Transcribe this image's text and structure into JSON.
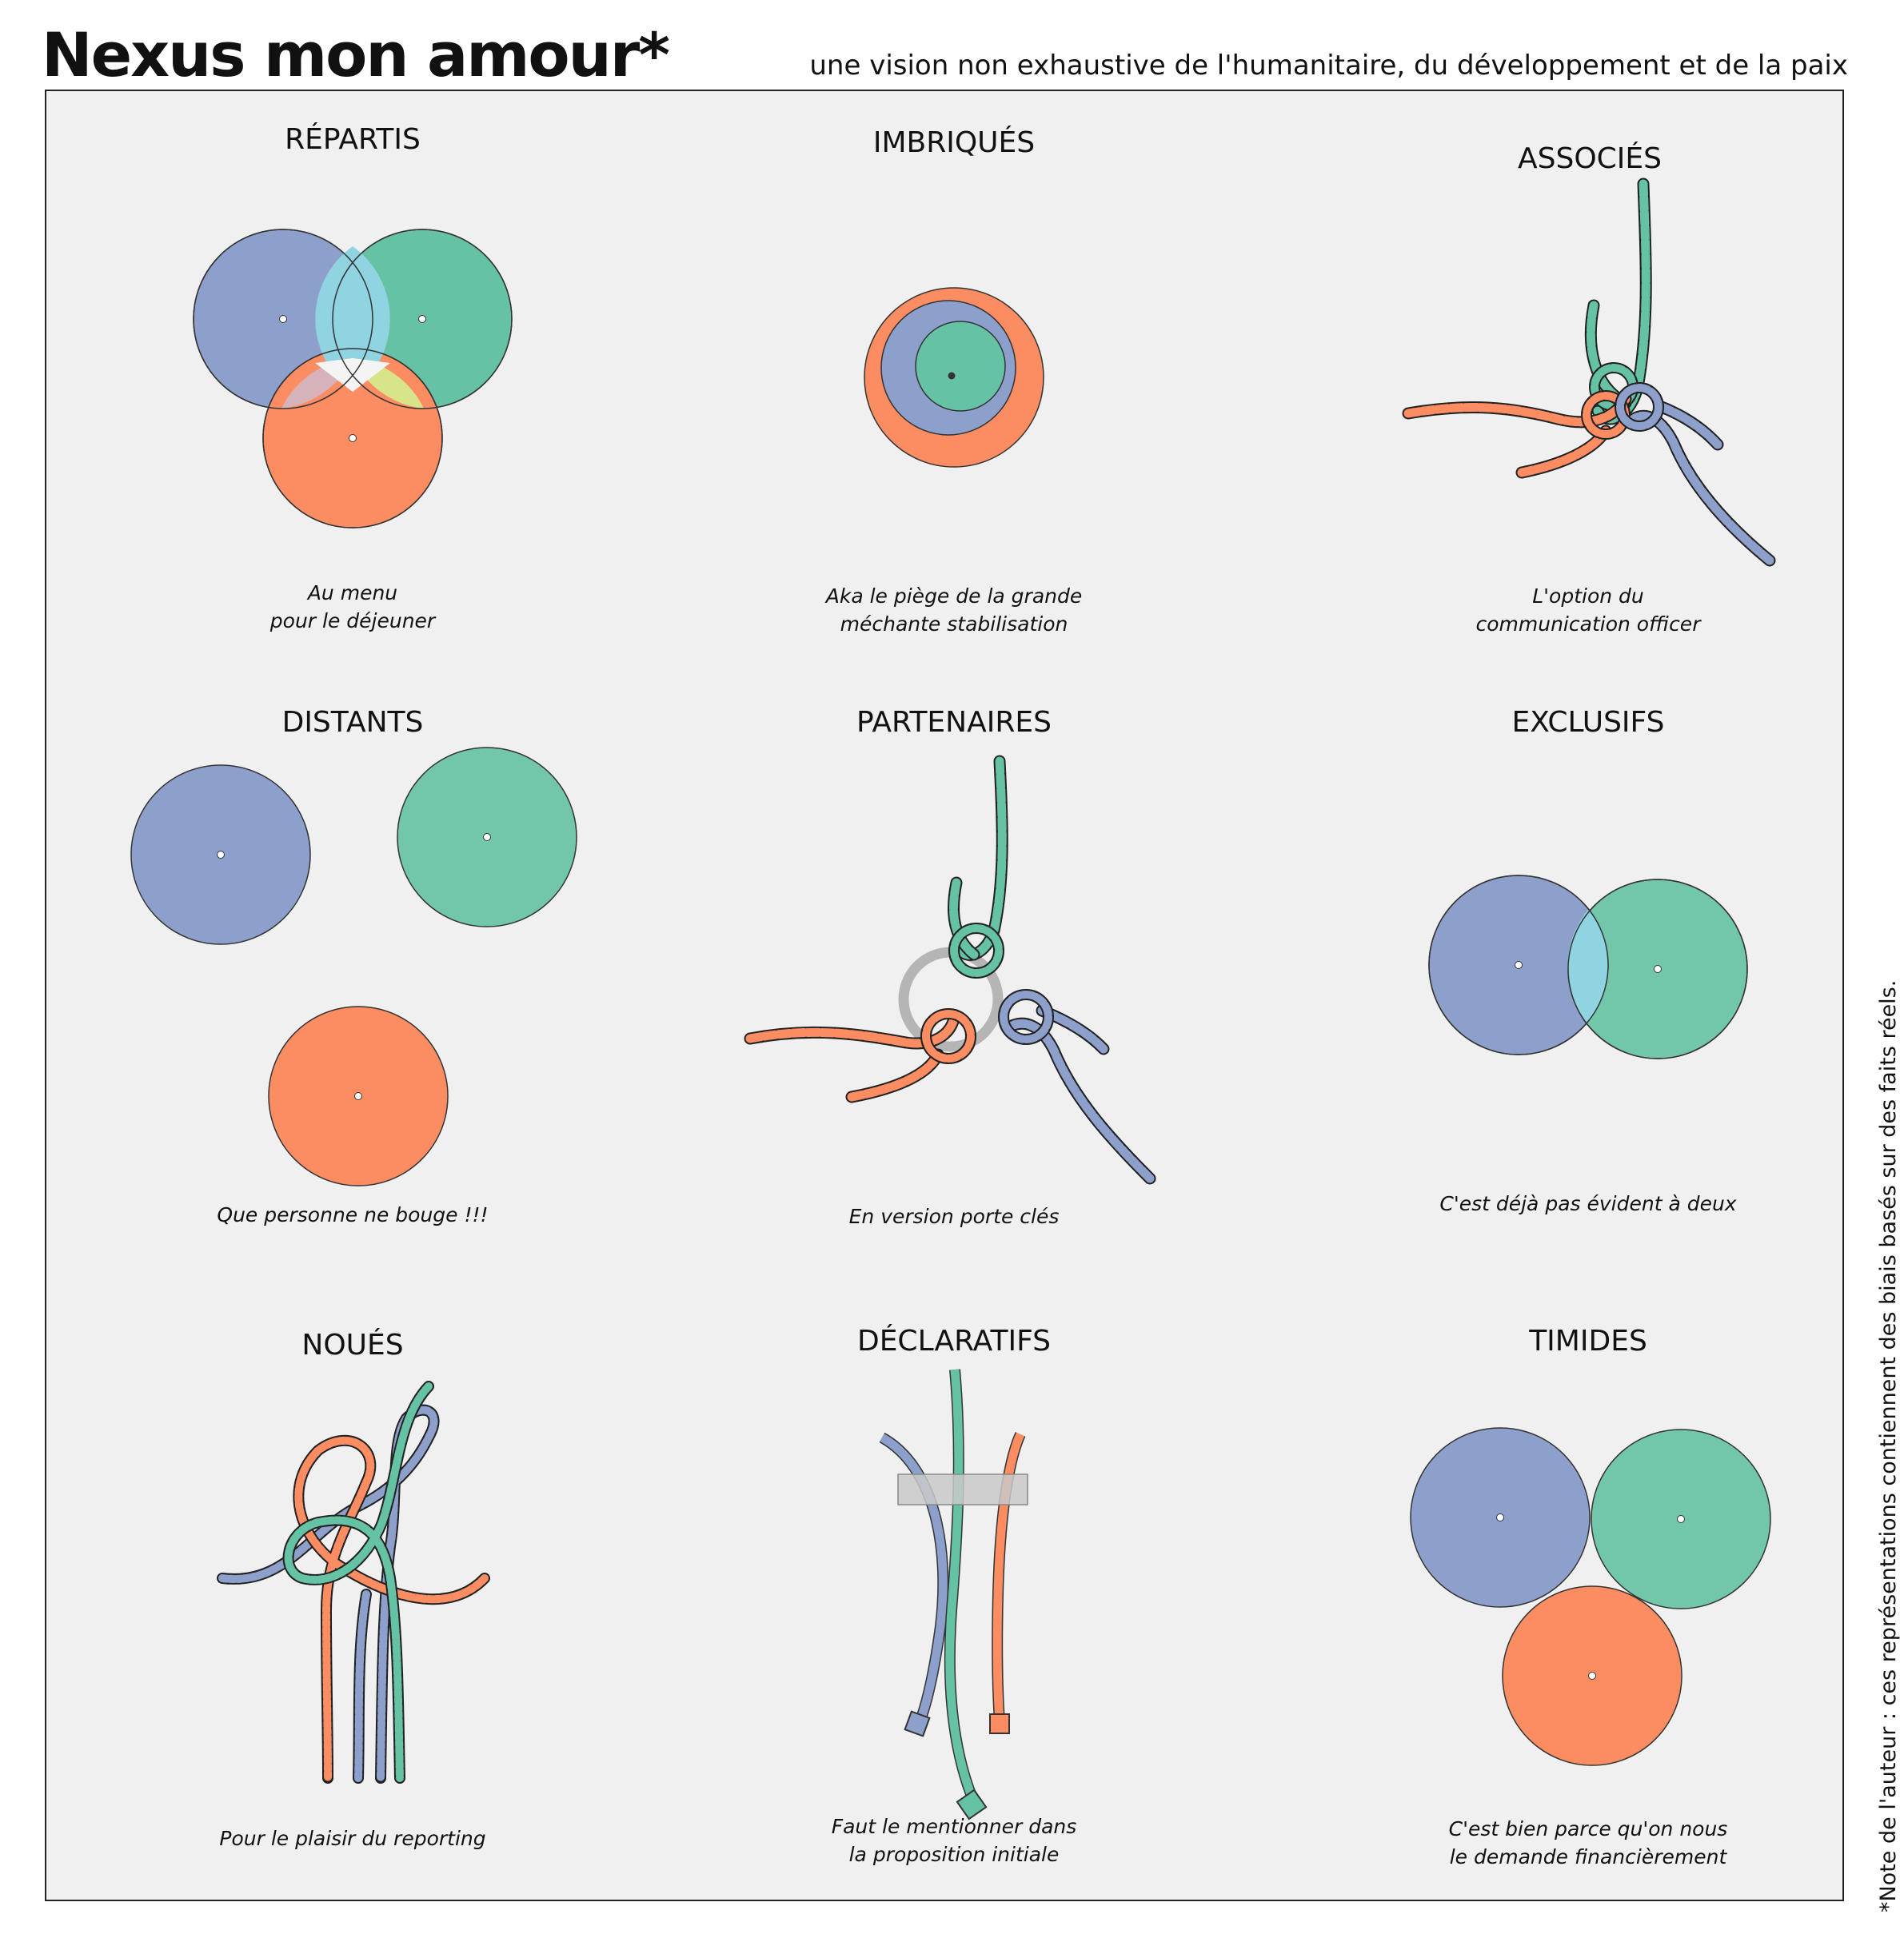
{
  "header": {
    "title": "Nexus mon amour*",
    "subtitle": "une vision non exhaustive de l'humanitaire, du développement et de la paix"
  },
  "footnote": "*Note de l'auteur : ces représentations contiennent des biais basés sur des faits réels.",
  "colors": {
    "blue": "#8da0cb",
    "green": "#66c2a5",
    "orange": "#fc8d62",
    "background": "#f0f0f0",
    "ring": "#b5b5b5"
  },
  "panels": [
    {
      "title": "RÉPARTIS",
      "caption": [
        "Au menu",
        "pour le déjeuner"
      ]
    },
    {
      "title": "IMBRIQUÉS",
      "caption": [
        "Aka le piège de la grande",
        "méchante stabilisation"
      ]
    },
    {
      "title": "ASSOCIÉS",
      "caption": [
        "L'option du",
        "communication officer"
      ]
    },
    {
      "title": "DISTANTS",
      "caption": [
        "Que personne ne bouge !!!"
      ]
    },
    {
      "title": "PARTENAIRES",
      "caption": [
        "En version porte clés"
      ]
    },
    {
      "title": "EXCLUSIFS",
      "caption": [
        "C'est déjà pas évident à deux"
      ]
    },
    {
      "title": "NOUÉS",
      "caption": [
        "Pour le plaisir du reporting"
      ]
    },
    {
      "title": "DÉCLARATIFS",
      "caption": [
        "Faut le mentionner dans",
        "la proposition initiale"
      ]
    },
    {
      "title": "TIMIDES",
      "caption": [
        "C'est bien parce qu'on nous",
        "le demande financièrement"
      ]
    }
  ]
}
